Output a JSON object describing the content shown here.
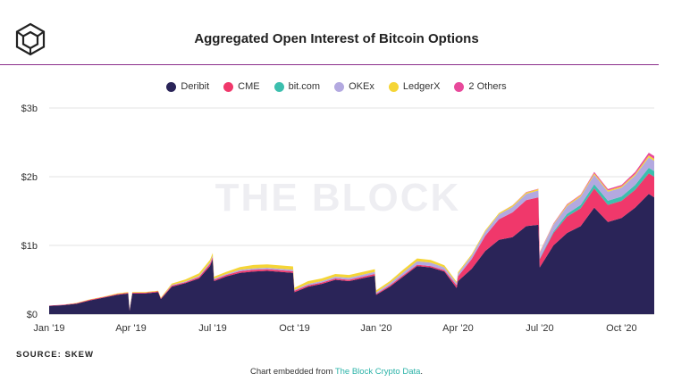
{
  "title": "Aggregated Open Interest of Bitcoin Options",
  "source": "SOURCE: SKEW",
  "footer": {
    "prefix": "Chart embedded from ",
    "link": "The Block Crypto Data",
    "suffix": "."
  },
  "watermark": "THE BLOCK",
  "colors": {
    "accent": "#8a2d8a",
    "link": "#2bb3a8"
  },
  "chart_data": {
    "type": "area",
    "stacked": true,
    "title": "Aggregated Open Interest of Bitcoin Options",
    "ylim": [
      0,
      3
    ],
    "y_unit": "billion USD",
    "y_ticks": [
      0,
      1,
      2,
      3
    ],
    "y_tick_labels": [
      "$0",
      "$1b",
      "$2b",
      "$3b"
    ],
    "x_tick_labels": [
      "Jan '19",
      "Apr '19",
      "Jul '19",
      "Oct '19",
      "Jan '20",
      "Apr '20",
      "Jul '20",
      "Oct '20"
    ],
    "x_tick_positions": [
      0,
      3,
      6,
      9,
      12,
      15,
      18,
      21
    ],
    "x_range": [
      0,
      22.2
    ],
    "x_unit": "months since Jan '19",
    "grid": true,
    "legend_position": "top-center",
    "series": [
      {
        "name": "Deribit",
        "color": "#2a2458"
      },
      {
        "name": "CME",
        "color": "#f0386b"
      },
      {
        "name": "bit.com",
        "color": "#3cbfae"
      },
      {
        "name": "OKEx",
        "color": "#b3a9e0"
      },
      {
        "name": "LedgerX",
        "color": "#f5d536"
      },
      {
        "name": "2 Others",
        "color": "#e8499b"
      }
    ],
    "x": [
      0,
      0.5,
      1,
      1.5,
      2,
      2.5,
      2.9,
      2.95,
      3.05,
      3.5,
      4,
      4.1,
      4.5,
      5,
      5.5,
      5.9,
      6.0,
      6.05,
      6.5,
      7,
      7.5,
      8,
      8.95,
      9.0,
      9.5,
      10,
      10.5,
      11,
      11.95,
      12.0,
      12.5,
      13,
      13.5,
      14,
      14.5,
      14.95,
      15.0,
      15.5,
      16,
      16.5,
      17,
      17.5,
      17.95,
      18.0,
      18.5,
      19,
      19.5,
      20,
      20.5,
      21,
      21.5,
      22,
      22.2
    ],
    "values": {
      "Deribit": [
        0.12,
        0.13,
        0.15,
        0.2,
        0.24,
        0.28,
        0.3,
        0.05,
        0.3,
        0.3,
        0.32,
        0.22,
        0.4,
        0.45,
        0.52,
        0.7,
        0.8,
        0.48,
        0.55,
        0.6,
        0.62,
        0.63,
        0.6,
        0.32,
        0.4,
        0.44,
        0.5,
        0.48,
        0.56,
        0.28,
        0.4,
        0.55,
        0.7,
        0.68,
        0.62,
        0.38,
        0.48,
        0.66,
        0.92,
        1.08,
        1.12,
        1.28,
        1.3,
        0.68,
        1.0,
        1.18,
        1.28,
        1.55,
        1.34,
        1.4,
        1.55,
        1.75,
        1.7
      ],
      "CME": [
        0.005,
        0.006,
        0.008,
        0.01,
        0.01,
        0.012,
        0.012,
        0.01,
        0.012,
        0.012,
        0.012,
        0.01,
        0.015,
        0.015,
        0.02,
        0.03,
        0.03,
        0.02,
        0.02,
        0.025,
        0.025,
        0.025,
        0.025,
        0.02,
        0.02,
        0.02,
        0.02,
        0.02,
        0.025,
        0.015,
        0.02,
        0.02,
        0.02,
        0.02,
        0.02,
        0.04,
        0.07,
        0.14,
        0.22,
        0.3,
        0.36,
        0.38,
        0.4,
        0.12,
        0.18,
        0.24,
        0.26,
        0.28,
        0.25,
        0.25,
        0.26,
        0.3,
        0.3
      ],
      "bit.com": [
        0,
        0,
        0,
        0,
        0,
        0,
        0,
        0,
        0,
        0,
        0,
        0,
        0,
        0,
        0,
        0,
        0,
        0,
        0,
        0,
        0,
        0,
        0,
        0,
        0,
        0,
        0,
        0,
        0,
        0,
        0,
        0,
        0,
        0,
        0,
        0,
        0,
        0,
        0,
        0,
        0,
        0,
        0,
        0.01,
        0.02,
        0.04,
        0.05,
        0.06,
        0.06,
        0.06,
        0.07,
        0.08,
        0.08
      ],
      "OKEx": [
        0,
        0,
        0,
        0,
        0,
        0,
        0,
        0,
        0,
        0,
        0,
        0,
        0.01,
        0.01,
        0.015,
        0.02,
        0.02,
        0.015,
        0.015,
        0.02,
        0.02,
        0.02,
        0.02,
        0.015,
        0.02,
        0.02,
        0.025,
        0.03,
        0.03,
        0.02,
        0.03,
        0.04,
        0.05,
        0.05,
        0.04,
        0.03,
        0.04,
        0.05,
        0.06,
        0.07,
        0.08,
        0.09,
        0.1,
        0.08,
        0.1,
        0.11,
        0.12,
        0.14,
        0.13,
        0.13,
        0.14,
        0.15,
        0.15
      ],
      "LedgerX": [
        0,
        0,
        0.005,
        0.005,
        0.005,
        0.01,
        0.01,
        0.005,
        0.01,
        0.01,
        0.01,
        0.01,
        0.02,
        0.03,
        0.04,
        0.04,
        0.04,
        0.03,
        0.03,
        0.04,
        0.05,
        0.05,
        0.05,
        0.03,
        0.04,
        0.04,
        0.04,
        0.04,
        0.04,
        0.03,
        0.03,
        0.04,
        0.04,
        0.04,
        0.03,
        0.02,
        0.02,
        0.02,
        0.02,
        0.02,
        0.02,
        0.02,
        0.02,
        0.01,
        0.01,
        0.02,
        0.02,
        0.02,
        0.02,
        0.02,
        0.02,
        0.03,
        0.03
      ],
      "2 Others": [
        0,
        0,
        0,
        0,
        0,
        0,
        0,
        0,
        0,
        0,
        0,
        0,
        0,
        0,
        0,
        0,
        0,
        0,
        0,
        0,
        0,
        0,
        0,
        0,
        0,
        0,
        0,
        0,
        0,
        0,
        0,
        0,
        0,
        0,
        0,
        0,
        0,
        0,
        0,
        0,
        0.005,
        0.005,
        0.005,
        0.005,
        0.01,
        0.01,
        0.01,
        0.02,
        0.02,
        0.02,
        0.03,
        0.04,
        0.04
      ]
    }
  }
}
